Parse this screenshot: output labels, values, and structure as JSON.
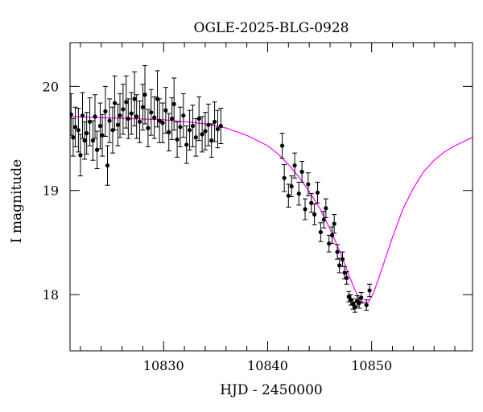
{
  "chart_data": {
    "type": "scatter",
    "title": "OGLE-2025-BLG-0928",
    "xlabel": "HJD - 2450000",
    "ylabel": "I magnitude",
    "xlim": [
      10821,
      10859.7
    ],
    "ylim": [
      20.42,
      17.46
    ],
    "y_inverted": true,
    "grid": false,
    "x_ticks": {
      "major": [
        10830,
        10840,
        10850
      ],
      "labels": [
        "10830",
        "10840",
        "10850"
      ],
      "minor_step": 2
    },
    "y_ticks": {
      "major": [
        18,
        19,
        20
      ],
      "labels": [
        "18",
        "19",
        "20"
      ],
      "minor_step": 0.2
    },
    "colors": {
      "data": "#000000",
      "model": "#ff00ff"
    },
    "model_curve": {
      "name": "",
      "x": [
        10821,
        10824,
        10827,
        10830,
        10832,
        10834,
        10836,
        10838,
        10840,
        10841,
        10842,
        10843,
        10844,
        10845,
        10846,
        10847,
        10848,
        10848.5,
        10849,
        10849.3,
        10849.7,
        10850.2,
        10851,
        10852,
        10853,
        10854,
        10855,
        10856,
        10857,
        10858,
        10859.7
      ],
      "y": [
        19.71,
        19.7,
        19.69,
        19.68,
        19.66,
        19.64,
        19.6,
        19.53,
        19.43,
        19.35,
        19.25,
        19.13,
        18.99,
        18.83,
        18.63,
        18.4,
        18.14,
        18.02,
        17.94,
        17.92,
        17.93,
        18.02,
        18.25,
        18.55,
        18.82,
        19.02,
        19.18,
        19.29,
        19.37,
        19.43,
        19.51
      ]
    },
    "series": [
      {
        "name": "",
        "x": [
          10821.1,
          10821.3,
          10821.5,
          10821.8,
          10822.0,
          10822.2,
          10822.4,
          10822.6,
          10822.9,
          10823.2,
          10823.4,
          10823.6,
          10823.9,
          10824.1,
          10824.4,
          10824.6,
          10824.8,
          10825.1,
          10825.3,
          10825.6,
          10825.8,
          10826.1,
          10826.4,
          10826.6,
          10826.9,
          10827.2,
          10827.4,
          10827.7,
          10828.0,
          10828.2,
          10828.5,
          10828.8,
          10829.1,
          10829.4,
          10829.6,
          10829.9,
          10830.2,
          10830.5,
          10830.8,
          10831.0,
          10831.3,
          10831.6,
          10831.9,
          10832.2,
          10832.5,
          10832.8,
          10833.1,
          10833.4,
          10833.7,
          10834.0,
          10834.3,
          10834.6,
          10834.9,
          10835.2,
          10835.5,
          10841.4,
          10841.6,
          10842.0,
          10842.3,
          10842.6,
          10843.0,
          10843.3,
          10843.6,
          10843.9,
          10844.2,
          10844.5,
          10844.8,
          10845.1,
          10845.4,
          10845.6,
          10845.9,
          10846.2,
          10846.4,
          10846.7,
          10846.9,
          10847.2,
          10847.4,
          10847.6,
          10847.8,
          10848.0,
          10848.2,
          10848.4,
          10848.6,
          10848.8,
          10849.0,
          10849.5,
          10849.8
        ],
        "y": [
          19.73,
          19.51,
          19.61,
          19.58,
          19.34,
          19.72,
          19.48,
          19.55,
          19.66,
          19.48,
          19.71,
          19.39,
          19.62,
          19.53,
          19.76,
          19.24,
          19.67,
          19.58,
          19.84,
          19.63,
          19.72,
          19.78,
          19.85,
          19.69,
          19.74,
          19.88,
          19.71,
          19.66,
          19.8,
          19.92,
          19.6,
          19.75,
          19.7,
          19.88,
          19.67,
          19.65,
          19.77,
          19.56,
          19.69,
          19.83,
          19.49,
          19.61,
          19.72,
          19.44,
          19.58,
          19.62,
          19.51,
          19.69,
          19.54,
          19.57,
          19.63,
          19.48,
          19.66,
          19.59,
          19.62,
          19.43,
          19.12,
          18.95,
          19.04,
          19.24,
          18.97,
          19.18,
          18.82,
          19.06,
          18.88,
          18.77,
          18.98,
          18.6,
          18.72,
          18.83,
          18.49,
          18.57,
          18.68,
          18.41,
          18.28,
          18.34,
          18.21,
          18.16,
          17.98,
          17.95,
          17.91,
          17.88,
          17.94,
          17.92,
          17.97,
          17.9,
          18.04
        ],
        "yerr": [
          0.2,
          0.18,
          0.19,
          0.21,
          0.2,
          0.22,
          0.18,
          0.2,
          0.23,
          0.19,
          0.21,
          0.18,
          0.22,
          0.2,
          0.24,
          0.19,
          0.21,
          0.22,
          0.26,
          0.2,
          0.21,
          0.24,
          0.25,
          0.19,
          0.2,
          0.26,
          0.21,
          0.2,
          0.22,
          0.28,
          0.18,
          0.22,
          0.2,
          0.27,
          0.21,
          0.19,
          0.22,
          0.18,
          0.2,
          0.25,
          0.17,
          0.19,
          0.21,
          0.18,
          0.19,
          0.2,
          0.18,
          0.21,
          0.17,
          0.18,
          0.2,
          0.16,
          0.19,
          0.18,
          0.17,
          0.12,
          0.13,
          0.11,
          0.1,
          0.12,
          0.11,
          0.1,
          0.1,
          0.11,
          0.09,
          0.1,
          0.1,
          0.09,
          0.08,
          0.09,
          0.08,
          0.08,
          0.09,
          0.07,
          0.07,
          0.07,
          0.06,
          0.06,
          0.05,
          0.05,
          0.05,
          0.05,
          0.05,
          0.05,
          0.05,
          0.05,
          0.06
        ]
      }
    ]
  }
}
